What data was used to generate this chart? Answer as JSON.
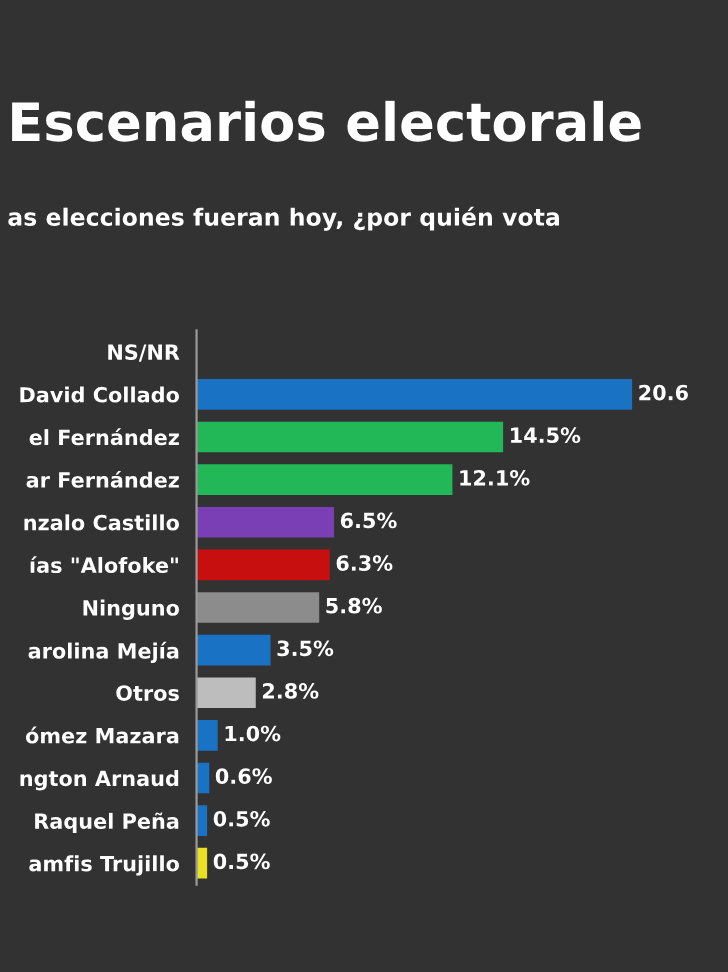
{
  "chart_data": {
    "type": "bar",
    "orientation": "horizontal",
    "title": "Escenarios electorale",
    "subtitle": "as elecciones fueran hoy, ¿por quién vota",
    "categories": [
      "NS/NR",
      "David Collado",
      "el Fernández",
      "ar Fernández",
      "nzalo Castillo",
      "ías \"Alofoke\"",
      "Ninguno",
      "arolina Mejía",
      "Otros",
      "ómez Mazara",
      "ngton Arnaud",
      "Raquel Peña",
      "amfis Trujillo"
    ],
    "values": [
      null,
      20.6,
      14.5,
      12.1,
      6.5,
      6.3,
      5.8,
      3.5,
      2.8,
      1.0,
      0.6,
      0.5,
      0.5
    ],
    "colors": [
      "#8c8c8c",
      "#1a72c4",
      "#22b857",
      "#22b857",
      "#7b3fb5",
      "#c80f0f",
      "#8c8c8c",
      "#1a72c4",
      "#bdbdbd",
      "#1a72c4",
      "#1a72c4",
      "#1a72c4",
      "#e8e020"
    ],
    "value_labels": [
      null,
      "20.6",
      "14.5%",
      "12.1%",
      "6.5%",
      "6.3%",
      "5.8%",
      "3.5%",
      "2.8%",
      "1.0%",
      "0.6%",
      "0.5%",
      "0.5%"
    ],
    "grid": false,
    "legend": false
  }
}
